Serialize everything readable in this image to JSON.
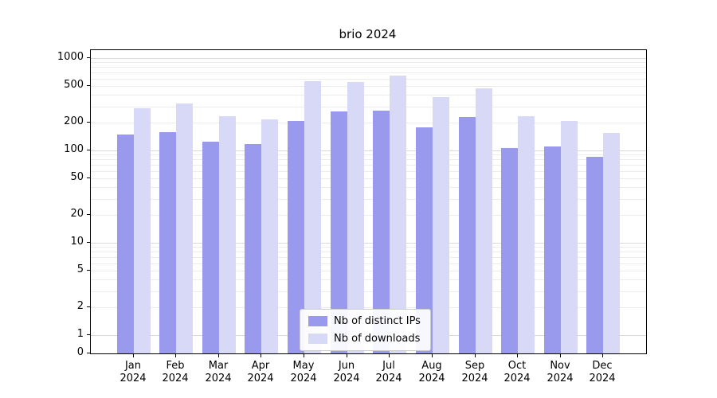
{
  "figure": {
    "title": "brio 2024"
  },
  "chart_data": {
    "type": "bar",
    "title": "brio 2024",
    "yscale": "log",
    "grid": true,
    "legend_position": "lower center",
    "categories": [
      "Jan 2024",
      "Feb 2024",
      "Mar 2024",
      "Apr 2024",
      "May 2024",
      "Jun 2024",
      "Jul 2024",
      "Aug 2024",
      "Sep 2024",
      "Oct 2024",
      "Nov 2024",
      "Dec 2024"
    ],
    "series": [
      {
        "name": "Nb of distinct IPs",
        "color": "#9999ee",
        "values": [
          150,
          158,
          124,
          117,
          208,
          264,
          270,
          178,
          228,
          106,
          110,
          85
        ]
      },
      {
        "name": "Nb of downloads",
        "color": "#d8d8f7",
        "values": [
          286,
          323,
          235,
          217,
          560,
          555,
          640,
          375,
          470,
          235,
          210,
          155
        ]
      }
    ],
    "yticks": [
      0,
      1,
      2,
      5,
      10,
      20,
      50,
      100,
      200,
      500,
      1000
    ],
    "ylim": [
      0,
      1000
    ]
  }
}
